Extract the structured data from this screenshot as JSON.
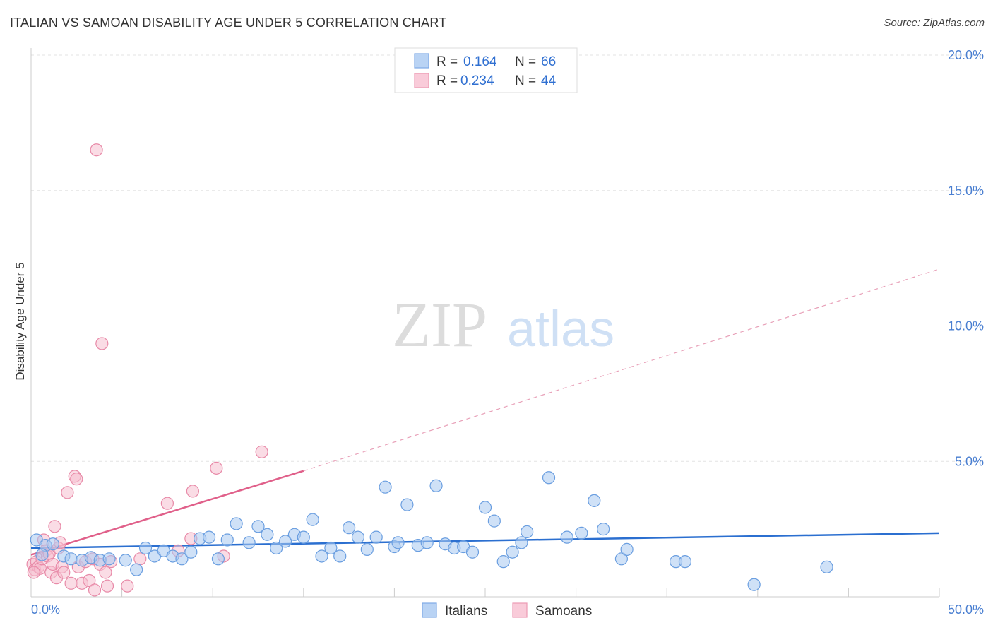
{
  "title": "ITALIAN VS SAMOAN DISABILITY AGE UNDER 5 CORRELATION CHART",
  "source": "Source: ZipAtlas.com",
  "watermark": {
    "zip": "ZIP",
    "atlas": "atlas"
  },
  "legend": {
    "rows": [
      {
        "r_label": "R =",
        "r_value": "0.164",
        "n_label": "N =",
        "n_value": "66"
      },
      {
        "r_label": "R =",
        "r_value": "0.234",
        "n_label": "N =",
        "n_value": "44"
      }
    ]
  },
  "bottom_legend": {
    "italians": "Italians",
    "samoans": "Samoans"
  },
  "colors": {
    "italians_fill": "#a8c8f0",
    "italians_stroke": "#6a9ee0",
    "italians_line": "#2b6fd0",
    "samoans_fill": "#f6bfd0",
    "samoans_stroke": "#e88aa8",
    "samoans_line": "#e0608a",
    "grid": "#e3e3e3",
    "tick_text": "#4a7fd1"
  },
  "chart_data": {
    "type": "scatter",
    "title": "ITALIAN VS SAMOAN DISABILITY AGE UNDER 5 CORRELATION CHART",
    "xlabel": "",
    "ylabel": "Disability Age Under 5",
    "xlim": [
      0,
      50
    ],
    "ylim": [
      0,
      20.5
    ],
    "x_tick_labels": [
      "0.0%",
      "50.0%"
    ],
    "y_ticks": [
      5,
      10,
      15,
      20
    ],
    "y_tick_labels": [
      "5.0%",
      "10.0%",
      "15.0%",
      "20.0%"
    ],
    "grid": true,
    "series": [
      {
        "name": "Italians",
        "R": 0.164,
        "N": 66,
        "trend": {
          "x": [
            0,
            50
          ],
          "y": [
            1.8,
            2.35
          ],
          "style": "solid"
        },
        "points": [
          [
            0.3,
            2.1
          ],
          [
            0.8,
            1.9
          ],
          [
            1.2,
            1.95
          ],
          [
            1.8,
            1.5
          ],
          [
            2.2,
            1.4
          ],
          [
            2.8,
            1.35
          ],
          [
            3.3,
            1.45
          ],
          [
            3.8,
            1.35
          ],
          [
            4.3,
            1.4
          ],
          [
            5.2,
            1.35
          ],
          [
            5.8,
            1.0
          ],
          [
            6.3,
            1.8
          ],
          [
            6.8,
            1.5
          ],
          [
            7.3,
            1.7
          ],
          [
            7.8,
            1.5
          ],
          [
            8.3,
            1.4
          ],
          [
            8.8,
            1.65
          ],
          [
            9.3,
            2.15
          ],
          [
            9.8,
            2.2
          ],
          [
            10.3,
            1.4
          ],
          [
            10.8,
            2.1
          ],
          [
            11.3,
            2.7
          ],
          [
            12.0,
            2.0
          ],
          [
            12.5,
            2.6
          ],
          [
            13.0,
            2.3
          ],
          [
            13.5,
            1.8
          ],
          [
            14.0,
            2.05
          ],
          [
            14.5,
            2.3
          ],
          [
            15.0,
            2.2
          ],
          [
            15.5,
            2.85
          ],
          [
            16.0,
            1.5
          ],
          [
            16.5,
            1.8
          ],
          [
            17.0,
            1.5
          ],
          [
            17.5,
            2.55
          ],
          [
            18.0,
            2.2
          ],
          [
            18.5,
            1.75
          ],
          [
            19.0,
            2.2
          ],
          [
            19.5,
            4.05
          ],
          [
            20.0,
            1.85
          ],
          [
            20.2,
            2.0
          ],
          [
            20.7,
            3.4
          ],
          [
            21.3,
            1.9
          ],
          [
            21.8,
            2.0
          ],
          [
            22.3,
            4.1
          ],
          [
            22.8,
            1.95
          ],
          [
            23.3,
            1.8
          ],
          [
            23.8,
            1.85
          ],
          [
            24.3,
            1.65
          ],
          [
            25.0,
            3.3
          ],
          [
            25.5,
            2.8
          ],
          [
            26.0,
            1.3
          ],
          [
            26.5,
            1.65
          ],
          [
            27.0,
            2.0
          ],
          [
            27.3,
            2.4
          ],
          [
            28.5,
            4.4
          ],
          [
            29.5,
            2.2
          ],
          [
            30.3,
            2.35
          ],
          [
            31.0,
            3.55
          ],
          [
            31.5,
            2.5
          ],
          [
            32.5,
            1.4
          ],
          [
            32.8,
            1.75
          ],
          [
            35.5,
            1.3
          ],
          [
            36.0,
            1.3
          ],
          [
            39.8,
            0.45
          ],
          [
            43.8,
            1.1
          ],
          [
            0.6,
            1.55
          ]
        ]
      },
      {
        "name": "Samoans",
        "R": 0.234,
        "N": 44,
        "trend": {
          "x": [
            0,
            15
          ],
          "y": [
            1.55,
            4.65
          ],
          "style": "solid",
          "extension": {
            "x": [
              15,
              50
            ],
            "y": [
              4.65,
              12.1
            ],
            "style": "dashed"
          }
        },
        "points": [
          [
            0.1,
            1.2
          ],
          [
            0.2,
            1.0
          ],
          [
            0.3,
            1.3
          ],
          [
            0.4,
            1.1
          ],
          [
            0.5,
            1.05
          ],
          [
            0.6,
            1.4
          ],
          [
            0.7,
            2.1
          ],
          [
            0.8,
            1.7
          ],
          [
            0.9,
            1.5
          ],
          [
            1.0,
            1.6
          ],
          [
            1.1,
            0.9
          ],
          [
            1.2,
            1.2
          ],
          [
            1.3,
            2.6
          ],
          [
            1.4,
            0.7
          ],
          [
            1.5,
            1.8
          ],
          [
            1.6,
            2.0
          ],
          [
            1.7,
            1.1
          ],
          [
            1.8,
            0.9
          ],
          [
            2.0,
            3.85
          ],
          [
            2.2,
            0.5
          ],
          [
            2.4,
            4.45
          ],
          [
            2.5,
            4.35
          ],
          [
            2.6,
            1.1
          ],
          [
            2.8,
            0.5
          ],
          [
            3.0,
            1.3
          ],
          [
            3.2,
            0.6
          ],
          [
            3.4,
            1.4
          ],
          [
            3.5,
            0.25
          ],
          [
            3.6,
            16.5
          ],
          [
            3.8,
            1.2
          ],
          [
            3.9,
            9.35
          ],
          [
            4.1,
            0.9
          ],
          [
            4.2,
            0.4
          ],
          [
            4.4,
            1.3
          ],
          [
            5.3,
            0.4
          ],
          [
            6.0,
            1.4
          ],
          [
            7.5,
            3.45
          ],
          [
            8.1,
            1.7
          ],
          [
            8.8,
            2.15
          ],
          [
            8.9,
            3.9
          ],
          [
            10.2,
            4.75
          ],
          [
            10.6,
            1.5
          ],
          [
            12.7,
            5.35
          ],
          [
            0.15,
            0.9
          ]
        ]
      }
    ]
  }
}
